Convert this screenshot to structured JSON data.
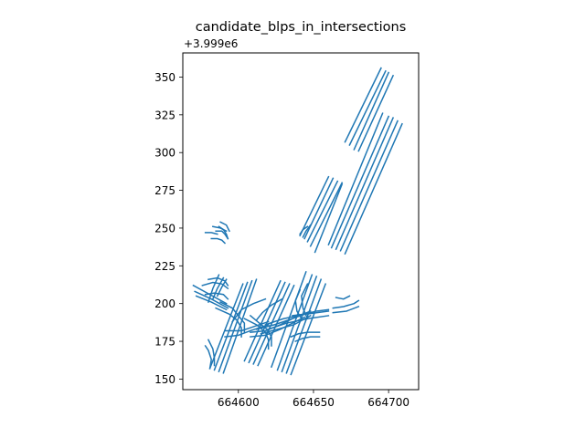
{
  "chart_data": {
    "type": "line",
    "title": "candidate_blps_in_intersections",
    "xlabel": "",
    "ylabel": "",
    "y_offset_text": "+3.999e6",
    "xlim": [
      664563,
      664720
    ],
    "ylim": [
      143,
      366
    ],
    "x_ticks": [
      664600,
      664650,
      664700
    ],
    "x_tick_labels": [
      "664600",
      "664650",
      "664700"
    ],
    "y_ticks": [
      150,
      175,
      200,
      225,
      250,
      275,
      300,
      325,
      350
    ],
    "y_tick_labels": [
      "150",
      "175",
      "200",
      "225",
      "250",
      "275",
      "300",
      "325",
      "350"
    ],
    "grid": false,
    "color": "#1f77b4",
    "series": [
      {
        "x": [
          664671,
          664695
        ],
        "y": [
          307,
          356
        ]
      },
      {
        "x": [
          664674,
          664698
        ],
        "y": [
          305,
          354
        ]
      },
      {
        "x": [
          664677,
          664700
        ],
        "y": [
          302,
          353
        ]
      },
      {
        "x": [
          664680,
          664703
        ],
        "y": [
          301,
          351
        ]
      },
      {
        "x": [
          664660,
          664696
        ],
        "y": [
          239,
          326
        ]
      },
      {
        "x": [
          664662,
          664700
        ],
        "y": [
          237,
          324
        ]
      },
      {
        "x": [
          664665,
          664703
        ],
        "y": [
          236,
          323
        ]
      },
      {
        "x": [
          664668,
          664706
        ],
        "y": [
          235,
          321
        ]
      },
      {
        "x": [
          664671,
          664709
        ],
        "y": [
          233,
          319
        ]
      },
      {
        "x": [
          664641,
          664660
        ],
        "y": [
          245,
          284
        ]
      },
      {
        "x": [
          664644,
          664663
        ],
        "y": [
          243,
          283
        ]
      },
      {
        "x": [
          664646,
          664666
        ],
        "y": [
          241,
          281
        ]
      },
      {
        "x": [
          664648,
          664669
        ],
        "y": [
          238,
          280
        ]
      },
      {
        "x": [
          664651,
          664669
        ],
        "y": [
          234,
          279
        ]
      },
      {
        "x": [
          664641,
          664643,
          664646
        ],
        "y": [
          246,
          249,
          251
        ]
      },
      {
        "x": [
          664643,
          664645,
          664648
        ],
        "y": [
          244,
          248,
          252
        ]
      },
      {
        "x": [
          664581,
          664603
        ],
        "y": [
          157,
          213
        ]
      },
      {
        "x": [
          664584,
          664606
        ],
        "y": [
          156,
          214
        ]
      },
      {
        "x": [
          664587,
          664609
        ],
        "y": [
          155,
          215
        ]
      },
      {
        "x": [
          664590,
          664612
        ],
        "y": [
          154,
          216
        ]
      },
      {
        "x": [
          664604,
          664628
        ],
        "y": [
          162,
          215
        ]
      },
      {
        "x": [
          664607,
          664631
        ],
        "y": [
          161,
          214
        ]
      },
      {
        "x": [
          664610,
          664634
        ],
        "y": [
          160,
          213
        ]
      },
      {
        "x": [
          664613,
          664637
        ],
        "y": [
          159,
          212
        ]
      },
      {
        "x": [
          664622,
          664645
        ],
        "y": [
          158,
          221
        ]
      },
      {
        "x": [
          664626,
          664649
        ],
        "y": [
          156,
          219
        ]
      },
      {
        "x": [
          664629,
          664652
        ],
        "y": [
          155,
          218
        ]
      },
      {
        "x": [
          664632,
          664655
        ],
        "y": [
          154,
          216
        ]
      },
      {
        "x": [
          664635,
          664658
        ],
        "y": [
          153,
          213
        ]
      },
      {
        "x": [
          664591,
          664602,
          664608,
          664614,
          664620
        ],
        "y": [
          182,
          182,
          184,
          186,
          188
        ]
      },
      {
        "x": [
          664591,
          664600,
          664608,
          664614,
          664620
        ],
        "y": [
          178,
          179,
          182,
          184,
          186
        ]
      },
      {
        "x": [
          664608,
          664618,
          664628,
          664636,
          664644
        ],
        "y": [
          181,
          182,
          186,
          190,
          193
        ]
      },
      {
        "x": [
          664608,
          664618,
          664628,
          664636,
          664644
        ],
        "y": [
          178,
          179,
          183,
          187,
          191
        ]
      },
      {
        "x": [
          664612,
          664624,
          664636,
          664648
        ],
        "y": [
          183,
          186,
          190,
          195
        ]
      },
      {
        "x": [
          664615,
          664626,
          664637,
          664648
        ],
        "y": [
          180,
          183,
          186,
          192
        ]
      },
      {
        "x": [
          664618,
          664630,
          664645,
          664660
        ],
        "y": [
          186,
          190,
          193,
          195
        ]
      },
      {
        "x": [
          664620,
          664632,
          664646,
          664660
        ],
        "y": [
          183,
          187,
          190,
          192
        ]
      },
      {
        "x": [
          664636,
          664644,
          664652,
          664660
        ],
        "y": [
          192,
          193,
          195,
          196
        ]
      },
      {
        "x": [
          664635,
          664640,
          664646,
          664654
        ],
        "y": [
          178,
          180,
          181,
          181
        ]
      },
      {
        "x": [
          664638,
          664643,
          664648,
          664654
        ],
        "y": [
          175,
          177,
          178,
          178
        ]
      },
      {
        "x": [
          664641,
          664638,
          664639,
          664642
        ],
        "y": [
          209,
          202,
          195,
          190
        ]
      },
      {
        "x": [
          664646,
          664642,
          664643,
          664646
        ],
        "y": [
          213,
          205,
          197,
          190
        ]
      },
      {
        "x": [
          664604,
          664612,
          664618,
          664620,
          664620
        ],
        "y": [
          190,
          186,
          181,
          176,
          170
        ]
      },
      {
        "x": [
          664608,
          664614,
          664619,
          664622,
          664622
        ],
        "y": [
          192,
          187,
          183,
          178,
          172
        ]
      },
      {
        "x": [
          664596,
          664602,
          664610,
          664618
        ],
        "y": [
          188,
          196,
          200,
          203
        ]
      },
      {
        "x": [
          664612,
          664616,
          664622,
          664629
        ],
        "y": [
          189,
          194,
          199,
          203
        ]
      },
      {
        "x": [
          664585,
          664594,
          664599,
          664602,
          664602
        ],
        "y": [
          197,
          193,
          189,
          184,
          178
        ]
      },
      {
        "x": [
          664588,
          664596,
          664600,
          664604,
          664604
        ],
        "y": [
          201,
          197,
          192,
          187,
          181
        ]
      },
      {
        "x": [
          664578,
          664580,
          664582,
          664581
        ],
        "y": [
          172,
          169,
          163,
          157
        ]
      },
      {
        "x": [
          664580,
          664583,
          664584,
          664584
        ],
        "y": [
          176,
          170,
          164,
          159
        ]
      },
      {
        "x": [
          664570,
          664581,
          664592
        ],
        "y": [
          212,
          206,
          200
        ]
      },
      {
        "x": [
          664571,
          664582,
          664593
        ],
        "y": [
          208,
          203,
          197
        ]
      },
      {
        "x": [
          664572,
          664582,
          664592
        ],
        "y": [
          205,
          201,
          196
        ]
      },
      {
        "x": [
          664580,
          664583,
          664587
        ],
        "y": [
          201,
          210,
          219
        ]
      },
      {
        "x": [
          664583,
          664586,
          664590
        ],
        "y": [
          203,
          210,
          217
        ]
      },
      {
        "x": [
          664586,
          664589,
          664592
        ],
        "y": [
          205,
          211,
          216
        ]
      },
      {
        "x": [
          664578,
          664584,
          664590,
          664593
        ],
        "y": [
          206,
          207,
          206,
          203
        ]
      },
      {
        "x": [
          664576,
          664583,
          664589,
          664593
        ],
        "y": [
          212,
          214,
          213,
          210
        ]
      },
      {
        "x": [
          664580,
          664586,
          664591,
          664593
        ],
        "y": [
          216,
          217,
          215,
          212
        ]
      },
      {
        "x": [
          664578,
          664582,
          664586
        ],
        "y": [
          247,
          247,
          246
        ]
      },
      {
        "x": [
          664582,
          664586,
          664589,
          664591
        ],
        "y": [
          243,
          243,
          242,
          240
        ]
      },
      {
        "x": [
          664585,
          664589,
          664591,
          664593
        ],
        "y": [
          248,
          248,
          246,
          243
        ]
      },
      {
        "x": [
          664587,
          664590,
          664592,
          664593
        ],
        "y": [
          251,
          249,
          246,
          243
        ]
      },
      {
        "x": [
          664588,
          664592,
          664594
        ],
        "y": [
          254,
          252,
          248
        ]
      },
      {
        "x": [
          664583,
          664588,
          664592
        ],
        "y": [
          251,
          250,
          248
        ]
      },
      {
        "x": [
          664665,
          664670,
          664674
        ],
        "y": [
          204,
          203,
          205
        ]
      },
      {
        "x": [
          664663,
          664670,
          664677,
          664680
        ],
        "y": [
          197,
          198,
          200,
          202
        ]
      },
      {
        "x": [
          664663,
          664672,
          664680
        ],
        "y": [
          194,
          195,
          198
        ]
      }
    ]
  }
}
